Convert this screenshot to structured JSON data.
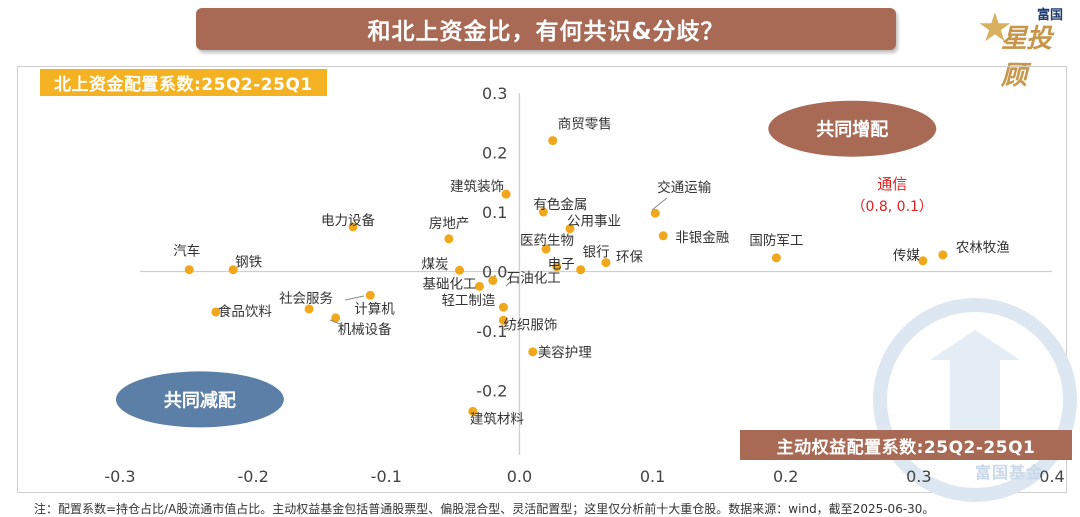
{
  "title": "和北上资金比，有何共识&分歧？",
  "logo": {
    "brand": "星投顾",
    "sub": "富国"
  },
  "y_axis_tag": "北上资金配置系数:25Q2-25Q1",
  "x_axis_tag": "主动权益配置系数:25Q2-25Q1",
  "footnote": "注：配置系数=持仓占比/A股流通市值占比。主动权益基金包括普通股票型、偏股混合型、灵活配置型；这里仅分析前十大重仓股。数据来源：wind，截至2025-06-30。",
  "watermark": "富国基金",
  "colors": {
    "point": "#f0a81a",
    "brown": "#a86a55",
    "blue": "#5b7fa6",
    "highlight_text": "#e02020"
  },
  "chart_data": {
    "type": "scatter",
    "xlim": [
      -0.3,
      0.4
    ],
    "ylim": [
      -0.3,
      0.3
    ],
    "x_ticks": [
      "-0.3",
      "-0.2",
      "-0.1",
      "0.0",
      "0.1",
      "0.2",
      "0.3",
      "0.4"
    ],
    "y_ticks": [
      "0.3",
      "0.2",
      "0.1",
      "0.0",
      "-0.1",
      "-0.2"
    ],
    "grid": false,
    "quadrant_labels": [
      {
        "text": "共同增配",
        "x": 0.25,
        "y": 0.24,
        "color": "#a86a55"
      },
      {
        "text": "共同减配",
        "x": -0.24,
        "y": -0.215,
        "color": "#5b7fa6"
      }
    ],
    "annotation": {
      "name": "通信",
      "value": "（0.8, 0.1）",
      "x": 0.28,
      "y": 0.115
    },
    "points": [
      {
        "name": "商贸零售",
        "x": 0.025,
        "y": 0.22,
        "dx": 3,
        "dy": -12,
        "anchor": "start"
      },
      {
        "name": "建筑装饰",
        "x": -0.01,
        "y": 0.13,
        "dx": -2,
        "dy": -3,
        "anchor": "end"
      },
      {
        "name": "交通运输",
        "x": 0.102,
        "y": 0.098,
        "dx": 0,
        "dy": -21,
        "anchor": "start"
      },
      {
        "name": "有色金属",
        "x": 0.018,
        "y": 0.1,
        "dx": -12,
        "dy": -3,
        "anchor": "start"
      },
      {
        "name": "公用事业",
        "x": 0.038,
        "y": 0.072,
        "dx": -5,
        "dy": -3,
        "anchor": "start"
      },
      {
        "name": "电力设备",
        "x": -0.125,
        "y": 0.075,
        "dx": -34,
        "dy": -2,
        "anchor": "start"
      },
      {
        "name": "房地产",
        "x": -0.053,
        "y": 0.055,
        "dx": -22,
        "dy": -11,
        "anchor": "start"
      },
      {
        "name": "医药生物",
        "x": 0.02,
        "y": 0.038,
        "dx": -28,
        "dy": -4,
        "anchor": "start"
      },
      {
        "name": "非银金融",
        "x": 0.108,
        "y": 0.06,
        "dx": 10,
        "dy": 6,
        "anchor": "start"
      },
      {
        "name": "国防军工",
        "x": 0.193,
        "y": 0.023,
        "dx": -29,
        "dy": -13,
        "anchor": "start"
      },
      {
        "name": "农林牧渔",
        "x": 0.318,
        "y": 0.028,
        "dx": 11,
        "dy": -3,
        "anchor": "start"
      },
      {
        "name": "传媒",
        "x": 0.303,
        "y": 0.018,
        "dx": -3,
        "dy": -1,
        "anchor": "end"
      },
      {
        "name": "汽车",
        "x": -0.248,
        "y": 0.003,
        "dx": -18,
        "dy": -14,
        "anchor": "start"
      },
      {
        "name": "钢铁",
        "x": -0.215,
        "y": 0.003,
        "dx": 0,
        "dy": -3,
        "anchor": "start"
      },
      {
        "name": "煤炭",
        "x": -0.045,
        "y": 0.002,
        "dx": -11,
        "dy": -2,
        "anchor": "end"
      },
      {
        "name": "电子",
        "x": 0.028,
        "y": 0.008,
        "dx": -11,
        "dy": 2,
        "anchor": "start"
      },
      {
        "name": "银行",
        "x": 0.046,
        "y": 0.003,
        "dx": 0,
        "dy": -13,
        "anchor": "start"
      },
      {
        "name": "环保",
        "x": 0.065,
        "y": 0.015,
        "dx": 8,
        "dy": -1,
        "anchor": "start"
      },
      {
        "name": "石油化工",
        "x": -0.02,
        "y": -0.015,
        "dx": 12,
        "dy": 2,
        "anchor": "start"
      },
      {
        "name": "基础化工",
        "x": -0.03,
        "y": -0.025,
        "dx": -3,
        "dy": 2,
        "anchor": "end"
      },
      {
        "name": "社会服务",
        "x": -0.158,
        "y": -0.063,
        "dx": -32,
        "dy": -6,
        "anchor": "start"
      },
      {
        "name": "计算机",
        "x": -0.112,
        "y": -0.04,
        "dx": -18,
        "dy": 18,
        "anchor": "start"
      },
      {
        "name": "食品饮料",
        "x": -0.228,
        "y": -0.068,
        "dx": 0,
        "dy": 4,
        "anchor": "start"
      },
      {
        "name": "机械设备",
        "x": -0.138,
        "y": -0.078,
        "dx": 0,
        "dy": 16,
        "anchor": "start"
      },
      {
        "name": "轻工制造",
        "x": -0.012,
        "y": -0.06,
        "dx": -8,
        "dy": -2,
        "anchor": "end"
      },
      {
        "name": "纺织服饰",
        "x": -0.012,
        "y": -0.082,
        "dx": -2,
        "dy": 9,
        "anchor": "start"
      },
      {
        "name": "美容护理",
        "x": 0.01,
        "y": -0.135,
        "dx": 3,
        "dy": 5,
        "anchor": "start"
      },
      {
        "name": "建筑材料",
        "x": -0.035,
        "y": -0.235,
        "dx": -5,
        "dy": 12,
        "anchor": "start"
      }
    ]
  }
}
